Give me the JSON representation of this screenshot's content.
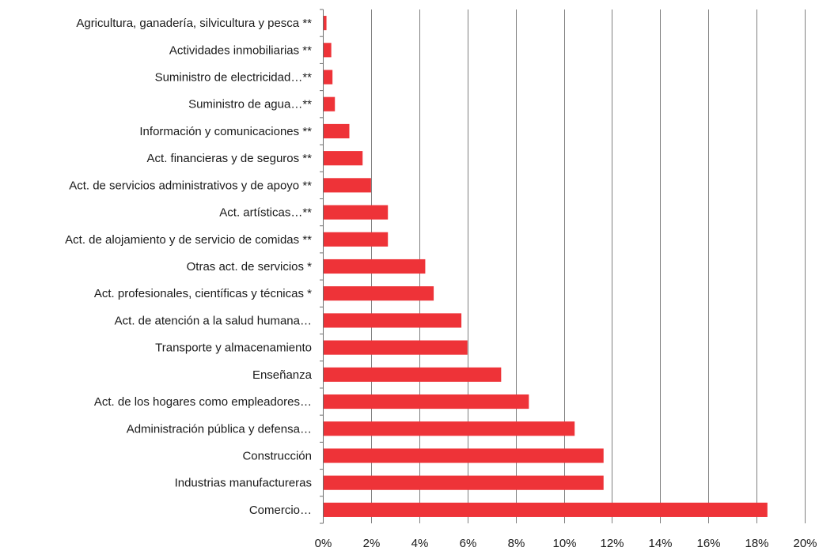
{
  "chart_data": {
    "type": "bar",
    "orientation": "horizontal",
    "categories": [
      "Agricultura, ganadería, silvicultura y pesca **",
      "Actividades inmobiliarias **",
      "Suministro de electricidad…**",
      "Suministro de agua…**",
      "Información y comunicaciones **",
      "Act. financieras y de seguros **",
      "Act. de servicios administrativos y de apoyo **",
      "Act. artísticas…**",
      "Act. de alojamiento y de servicio de comidas **",
      "Otras act. de servicios *",
      "Act. profesionales, científicas y técnicas *",
      "Act. de atención a la salud humana…",
      "Transporte y almacenamiento",
      "Enseñanza",
      "Act. de los hogares como empleadores…",
      "Administración pública y defensa…",
      "Construcción",
      "Industrias manufactureras",
      "Comercio…"
    ],
    "values": [
      0.15,
      0.35,
      0.4,
      0.5,
      1.1,
      1.65,
      2.0,
      2.7,
      2.7,
      4.25,
      4.6,
      5.75,
      6.0,
      7.4,
      8.55,
      10.45,
      11.65,
      11.65,
      18.45
    ],
    "xlim": [
      0,
      20
    ],
    "x_ticks": [
      "0%",
      "2%",
      "4%",
      "6%",
      "8%",
      "10%",
      "12%",
      "14%",
      "16%",
      "18%",
      "20%"
    ],
    "grid": "vertical",
    "bar_color": "#ee3338",
    "grid_color": "#808080",
    "legend": "none"
  }
}
